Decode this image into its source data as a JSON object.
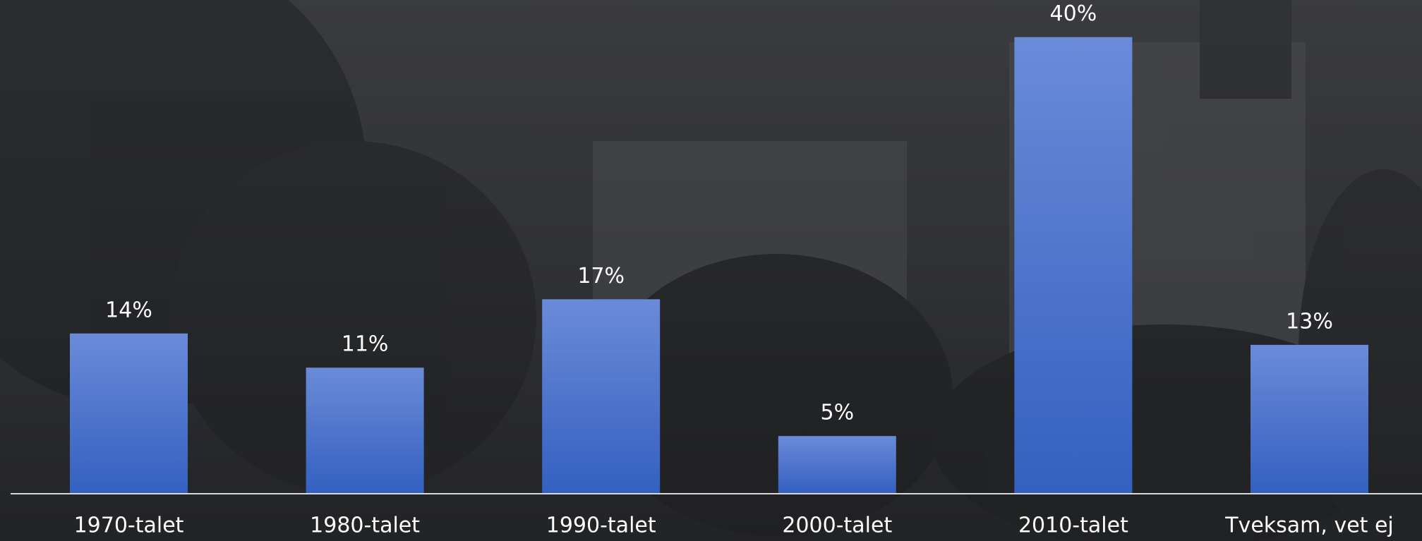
{
  "chart_data": {
    "type": "bar",
    "categories": [
      "1970-talet",
      "1980-talet",
      "1990-talet",
      "2000-talet",
      "2010-talet",
      "Tveksam, vet ej"
    ],
    "values": [
      14,
      11,
      17,
      5,
      40,
      13
    ],
    "value_labels": [
      "14%",
      "11%",
      "17%",
      "5%",
      "40%",
      "13%"
    ],
    "color": "#3f6cc9"
  }
}
